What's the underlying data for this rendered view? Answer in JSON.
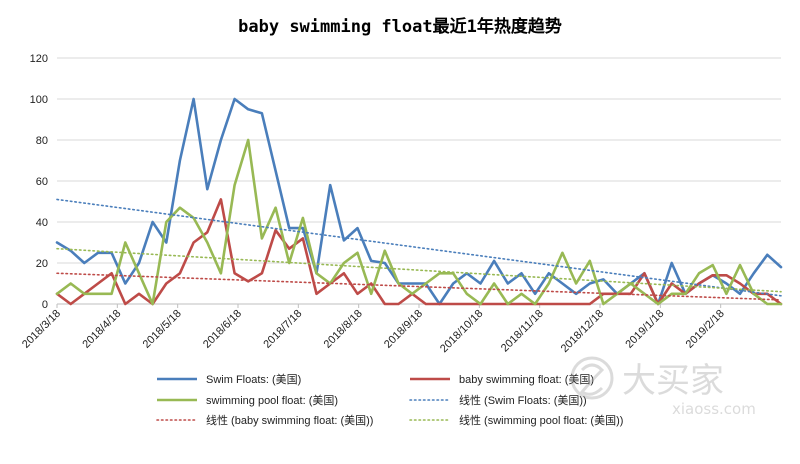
{
  "chart_data": {
    "type": "line",
    "title": "baby swimming float最近1年热度趋势",
    "ylim": [
      0,
      120
    ],
    "yticks": [
      0,
      20,
      40,
      60,
      80,
      100,
      120
    ],
    "x_tick_labels": [
      "2018/3/18",
      "2018/4/18",
      "2018/5/18",
      "2018/6/18",
      "2018/7/18",
      "2018/8/18",
      "2018/9/18",
      "2018/10/18",
      "2018/11/18",
      "2018/12/18",
      "2019/1/18",
      "2019/2/18"
    ],
    "grid": true,
    "legend_position": "bottom",
    "series": [
      {
        "name": "Swim Floats: (美国)",
        "color": "#4a7ebb",
        "style": "solid",
        "values": [
          30,
          26,
          20,
          25,
          25,
          10,
          20,
          40,
          30,
          70,
          100,
          56,
          80,
          100,
          95,
          93,
          65,
          37,
          37,
          15,
          58,
          31,
          37,
          21,
          20,
          10,
          10,
          10,
          0,
          10,
          15,
          10,
          21,
          10,
          15,
          5,
          15,
          10,
          5,
          10,
          12,
          5,
          10,
          15,
          0,
          20,
          5,
          10,
          14,
          10,
          5,
          15,
          24,
          18
        ]
      },
      {
        "name": "baby swimming float: (美国)",
        "color": "#be4b48",
        "style": "solid",
        "values": [
          5,
          0,
          5,
          10,
          15,
          0,
          5,
          0,
          10,
          15,
          30,
          35,
          51,
          15,
          11,
          15,
          36,
          27,
          32,
          5,
          10,
          15,
          5,
          10,
          0,
          0,
          5,
          0,
          0,
          0,
          0,
          0,
          0,
          0,
          0,
          0,
          0,
          0,
          0,
          0,
          5,
          5,
          5,
          15,
          0,
          10,
          5,
          10,
          14,
          14,
          10,
          5,
          5,
          0
        ]
      },
      {
        "name": "swimming pool float: (美国)",
        "color": "#98b954",
        "style": "solid",
        "values": [
          5,
          10,
          5,
          5,
          5,
          30,
          15,
          0,
          40,
          47,
          42,
          30,
          15,
          58,
          80,
          32,
          47,
          20,
          42,
          15,
          10,
          20,
          25,
          5,
          26,
          10,
          5,
          10,
          15,
          15,
          5,
          0,
          10,
          0,
          5,
          0,
          10,
          25,
          10,
          21,
          0,
          5,
          10,
          5,
          0,
          5,
          5,
          15,
          19,
          5,
          19,
          5,
          0,
          0
        ]
      },
      {
        "name": "线性 (Swim Floats: (美国))",
        "color": "#4a7ebb",
        "style": "dotted",
        "trend_from": 51,
        "trend_to": 4
      },
      {
        "name": "线性 (baby swimming float: (美国))",
        "color": "#be4b48",
        "style": "dotted",
        "trend_from": 15,
        "trend_to": 2
      },
      {
        "name": "线性 (swimming pool float: (美国))",
        "color": "#98b954",
        "style": "dotted",
        "trend_from": 27,
        "trend_to": 6
      }
    ]
  },
  "watermark": {
    "brand": "大买家",
    "site": "xiaoss.com"
  }
}
